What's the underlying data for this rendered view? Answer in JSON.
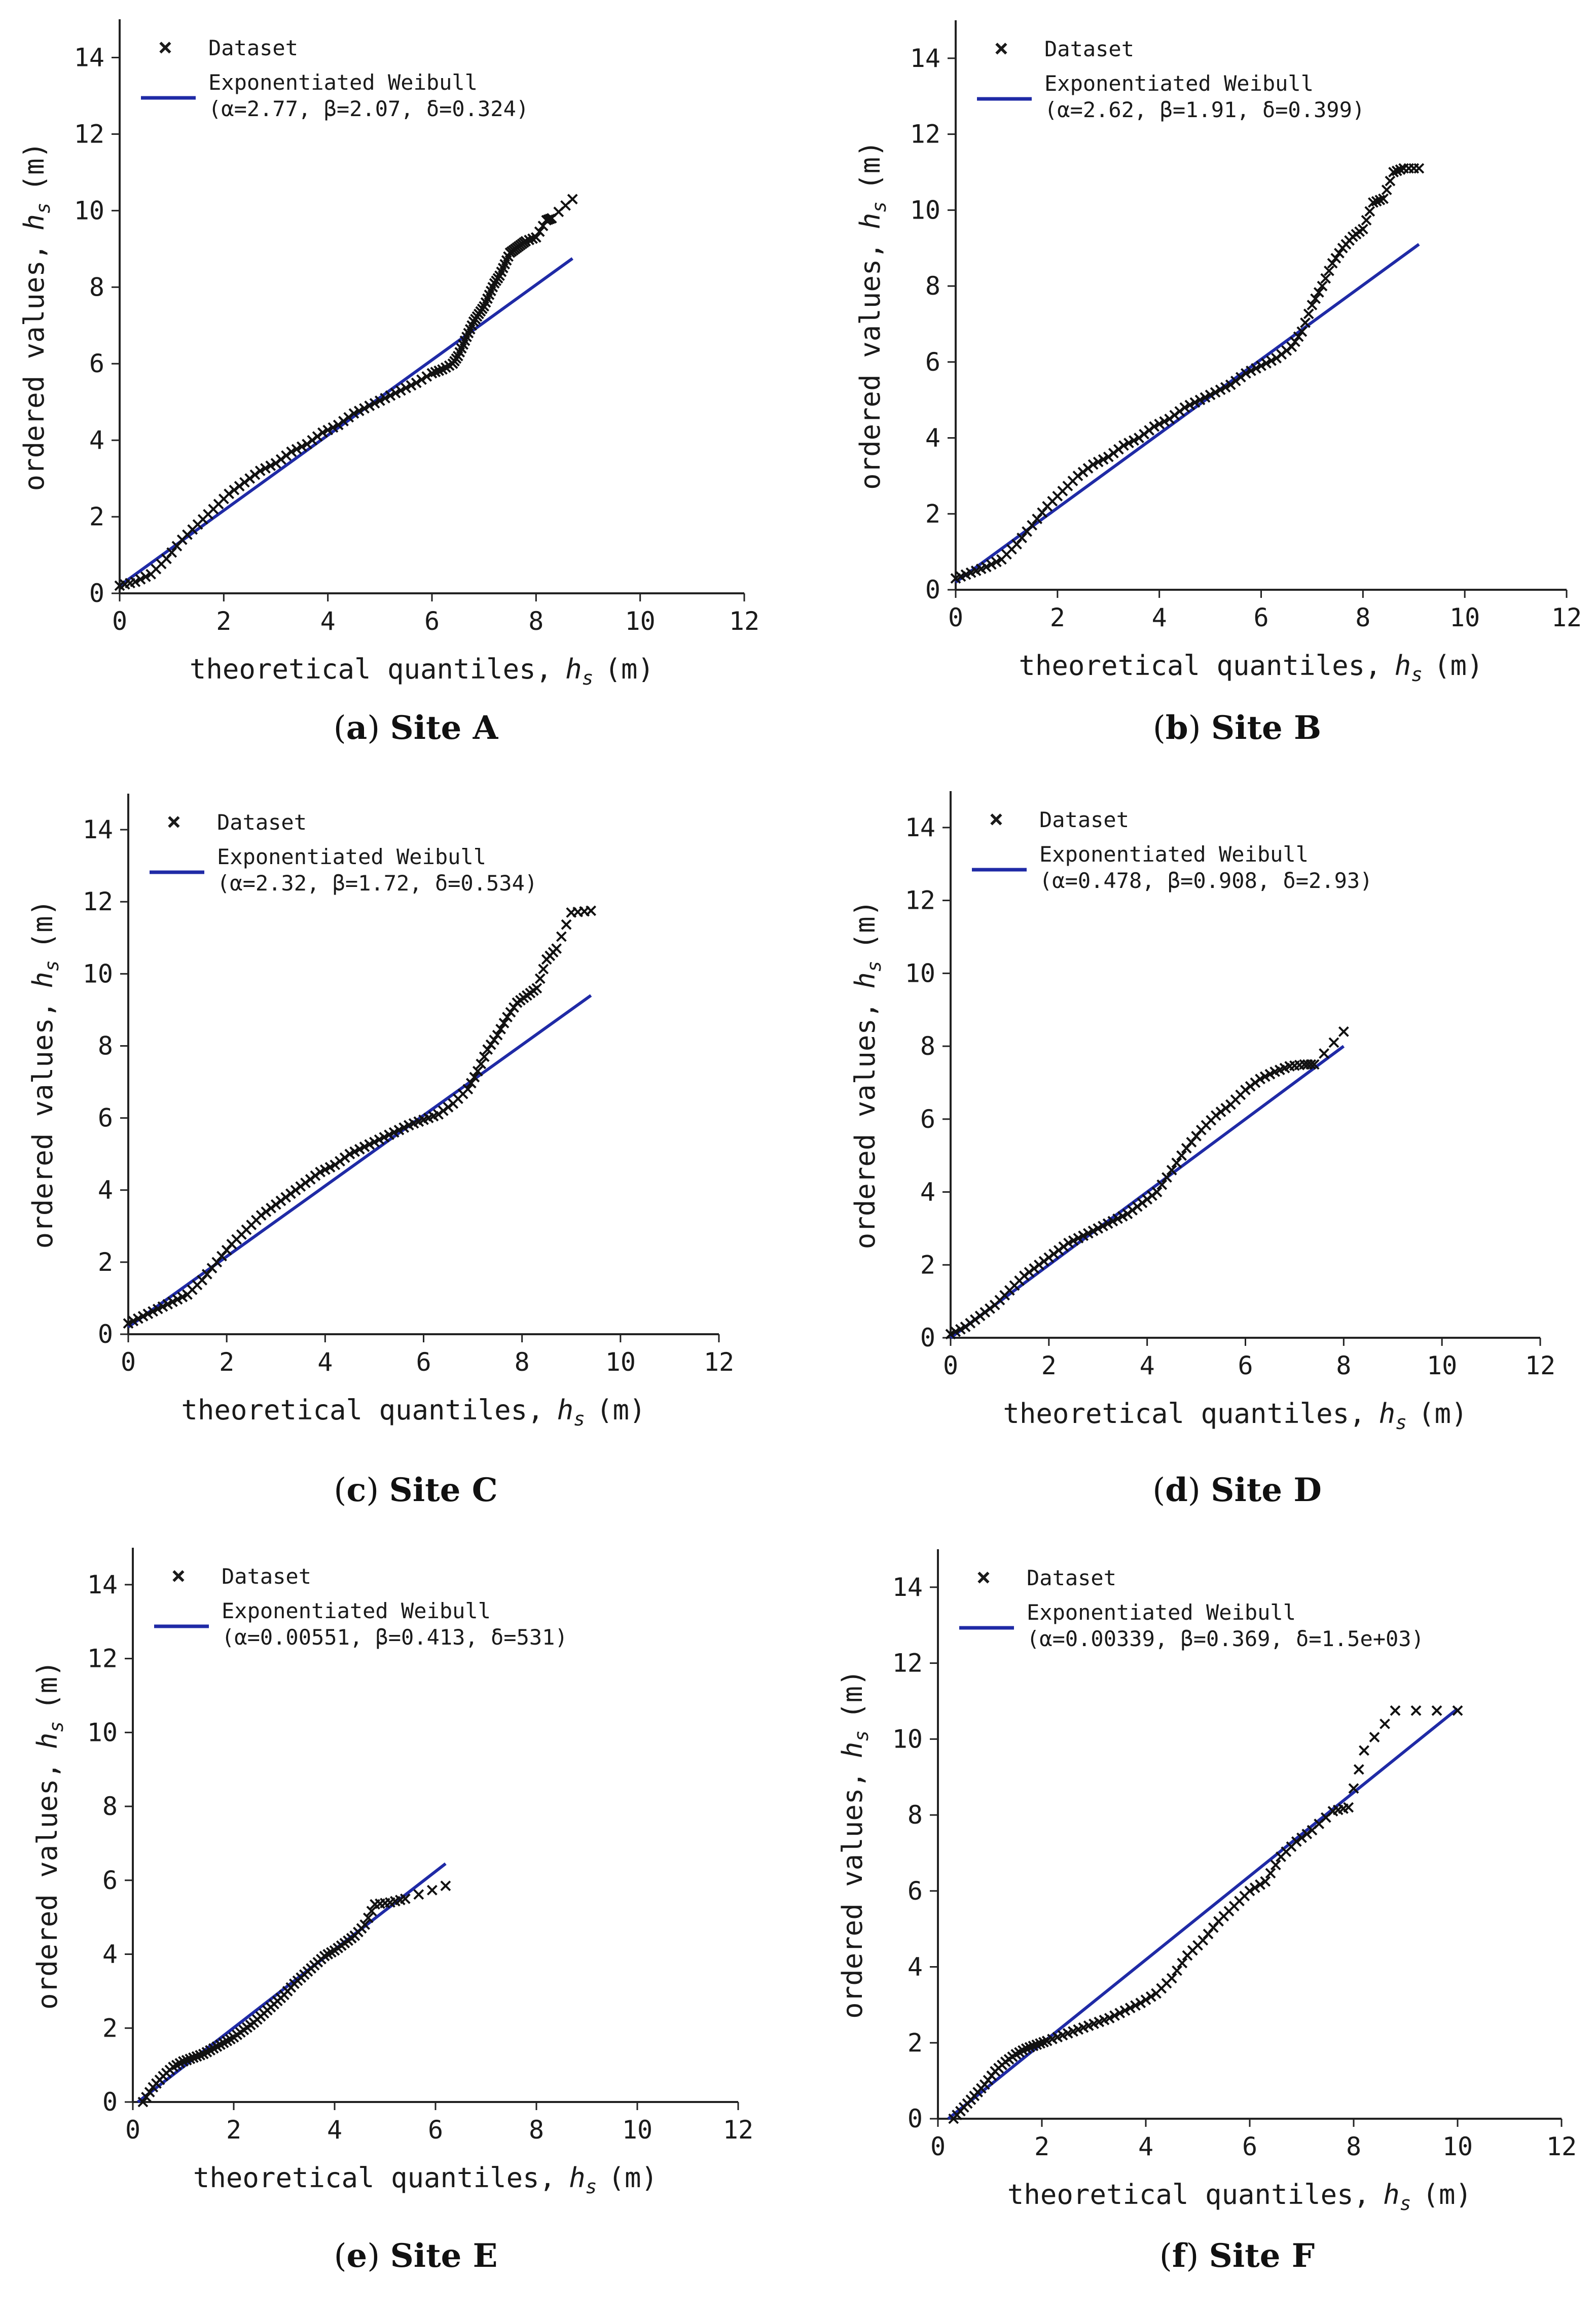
{
  "colors": {
    "fit_line": "#1f2aa6",
    "points": "#111111",
    "axis": "#222222"
  },
  "legend_markers": {
    "dataset_marker": "×"
  },
  "chart_data": [
    {
      "type": "scatter",
      "panel": "a",
      "caption_letter": "a",
      "caption_site": "Site A",
      "xlabel": "theoretical quantiles,",
      "ylabel": "ordered values,",
      "var_label": "h",
      "var_sub": "s",
      "unit": "(m)",
      "xlim": [
        0,
        12
      ],
      "ylim": [
        0,
        15
      ],
      "xticks": [
        "0",
        "2",
        "4",
        "6",
        "8",
        "10",
        "12"
      ],
      "yticks": [
        "0",
        "2",
        "4",
        "6",
        "8",
        "10",
        "12",
        "14"
      ],
      "legend": {
        "dataset_label": "Dataset",
        "fit_label": "Exponentiated Weibull",
        "params": "(α=2.77, β=2.07, δ=0.324)"
      },
      "fit_line": {
        "x": [
          0,
          8.7
        ],
        "y": [
          0.2,
          8.75
        ]
      },
      "points": {
        "x": [
          0,
          0.3,
          0.6,
          0.9,
          1.2,
          1.5,
          1.8,
          2.1,
          2.4,
          2.7,
          3.0,
          3.3,
          3.6,
          3.9,
          4.2,
          4.5,
          4.8,
          5.1,
          5.4,
          5.7,
          6.0,
          6.2,
          6.4,
          6.5,
          6.6,
          6.7,
          6.8,
          6.9,
          7.0,
          7.1,
          7.2,
          7.3,
          7.4,
          7.5,
          7.6,
          7.7,
          7.8,
          8.0,
          8.2,
          8.3,
          8.7
        ],
        "y": [
          0.2,
          0.3,
          0.5,
          0.9,
          1.4,
          1.8,
          2.2,
          2.6,
          2.9,
          3.2,
          3.4,
          3.7,
          3.9,
          4.2,
          4.4,
          4.7,
          4.9,
          5.1,
          5.3,
          5.5,
          5.75,
          5.85,
          6.0,
          6.2,
          6.5,
          6.8,
          7.1,
          7.3,
          7.5,
          7.8,
          8.1,
          8.3,
          8.6,
          8.9,
          9.0,
          9.1,
          9.2,
          9.3,
          9.75,
          9.8,
          10.3
        ]
      }
    },
    {
      "type": "scatter",
      "panel": "b",
      "caption_letter": "b",
      "caption_site": "Site B",
      "xlabel": "theoretical quantiles,",
      "ylabel": "ordered values,",
      "var_label": "h",
      "var_sub": "s",
      "unit": "(m)",
      "xlim": [
        0,
        12
      ],
      "ylim": [
        0,
        15
      ],
      "xticks": [
        "0",
        "2",
        "4",
        "6",
        "8",
        "10",
        "12"
      ],
      "yticks": [
        "0",
        "2",
        "4",
        "6",
        "8",
        "10",
        "12",
        "14"
      ],
      "legend": {
        "dataset_label": "Dataset",
        "fit_label": "Exponentiated Weibull",
        "params": "(α=2.62, β=1.91, δ=0.399)"
      },
      "fit_line": {
        "x": [
          0,
          9.1
        ],
        "y": [
          0.2,
          9.1
        ]
      },
      "points": {
        "x": [
          0,
          0.3,
          0.6,
          0.9,
          1.2,
          1.5,
          1.8,
          2.1,
          2.4,
          2.7,
          3.0,
          3.3,
          3.6,
          3.9,
          4.2,
          4.5,
          4.8,
          5.1,
          5.4,
          5.7,
          6.0,
          6.3,
          6.6,
          6.8,
          7.0,
          7.2,
          7.4,
          7.6,
          7.8,
          8.0,
          8.2,
          8.4,
          8.6,
          8.8,
          9.1
        ],
        "y": [
          0.3,
          0.45,
          0.6,
          0.8,
          1.2,
          1.7,
          2.2,
          2.6,
          3.0,
          3.3,
          3.5,
          3.8,
          4.0,
          4.3,
          4.5,
          4.8,
          5.0,
          5.2,
          5.4,
          5.7,
          5.9,
          6.1,
          6.4,
          6.8,
          7.5,
          8.0,
          8.6,
          9.0,
          9.3,
          9.5,
          10.2,
          10.3,
          11.0,
          11.1,
          11.1
        ]
      }
    },
    {
      "type": "scatter",
      "panel": "c",
      "caption_letter": "c",
      "caption_site": "Site C",
      "xlabel": "theoretical quantiles,",
      "ylabel": "ordered values,",
      "var_label": "h",
      "var_sub": "s",
      "unit": "(m)",
      "xlim": [
        0,
        12
      ],
      "ylim": [
        0,
        15
      ],
      "xticks": [
        "0",
        "2",
        "4",
        "6",
        "8",
        "10",
        "12"
      ],
      "yticks": [
        "0",
        "2",
        "4",
        "6",
        "8",
        "10",
        "12",
        "14"
      ],
      "legend": {
        "dataset_label": "Dataset",
        "fit_label": "Exponentiated Weibull",
        "params": "(α=2.32, β=1.72, δ=0.534)"
      },
      "fit_line": {
        "x": [
          0,
          9.4
        ],
        "y": [
          0.2,
          9.4
        ]
      },
      "points": {
        "x": [
          0,
          0.3,
          0.6,
          0.9,
          1.2,
          1.5,
          1.8,
          2.1,
          2.4,
          2.7,
          3.0,
          3.3,
          3.6,
          3.9,
          4.2,
          4.5,
          4.8,
          5.1,
          5.4,
          5.7,
          6.0,
          6.3,
          6.6,
          6.9,
          7.1,
          7.3,
          7.5,
          7.7,
          7.9,
          8.1,
          8.3,
          8.5,
          8.7,
          9.0,
          9.4
        ],
        "y": [
          0.3,
          0.5,
          0.7,
          0.9,
          1.1,
          1.5,
          2.0,
          2.5,
          2.9,
          3.3,
          3.6,
          3.9,
          4.2,
          4.5,
          4.7,
          5.0,
          5.2,
          5.4,
          5.6,
          5.8,
          5.95,
          6.1,
          6.4,
          6.8,
          7.3,
          7.9,
          8.3,
          8.8,
          9.2,
          9.4,
          9.6,
          10.4,
          10.7,
          11.7,
          11.75
        ]
      }
    },
    {
      "type": "scatter",
      "panel": "d",
      "caption_letter": "d",
      "caption_site": "Site D",
      "xlabel": "theoretical quantiles,",
      "ylabel": "ordered values,",
      "var_label": "h",
      "var_sub": "s",
      "unit": "(m)",
      "xlim": [
        0,
        12
      ],
      "ylim": [
        0,
        15
      ],
      "xticks": [
        "0",
        "2",
        "4",
        "6",
        "8",
        "10",
        "12"
      ],
      "yticks": [
        "0",
        "2",
        "4",
        "6",
        "8",
        "10",
        "12",
        "14"
      ],
      "legend": {
        "dataset_label": "Dataset",
        "fit_label": "Exponentiated Weibull",
        "params": "(α=0.478, β=0.908, δ=2.93)"
      },
      "fit_line": {
        "x": [
          0,
          8.0
        ],
        "y": [
          0.0,
          8.0
        ]
      },
      "points": {
        "x": [
          0,
          0.3,
          0.6,
          0.9,
          1.2,
          1.5,
          1.8,
          2.1,
          2.4,
          2.7,
          3.0,
          3.3,
          3.6,
          3.9,
          4.2,
          4.5,
          4.8,
          5.1,
          5.4,
          5.7,
          6.0,
          6.3,
          6.6,
          6.9,
          7.2,
          7.4,
          8.0
        ],
        "y": [
          0.1,
          0.3,
          0.6,
          0.9,
          1.3,
          1.7,
          2.0,
          2.3,
          2.6,
          2.8,
          3.0,
          3.2,
          3.4,
          3.7,
          4.0,
          4.6,
          5.2,
          5.7,
          6.1,
          6.4,
          6.8,
          7.1,
          7.3,
          7.45,
          7.5,
          7.5,
          8.4
        ]
      }
    },
    {
      "type": "scatter",
      "panel": "e",
      "caption_letter": "e",
      "caption_site": "Site E",
      "xlabel": "theoretical quantiles,",
      "ylabel": "ordered values,",
      "var_label": "h",
      "var_sub": "s",
      "unit": "(m)",
      "xlim": [
        0,
        12
      ],
      "ylim": [
        0,
        15
      ],
      "xticks": [
        "0",
        "2",
        "4",
        "6",
        "8",
        "10",
        "12"
      ],
      "yticks": [
        "0",
        "2",
        "4",
        "6",
        "8",
        "10",
        "12",
        "14"
      ],
      "legend": {
        "dataset_label": "Dataset",
        "fit_label": "Exponentiated Weibull",
        "params": "(α=0.00551, β=0.413, δ=531)"
      },
      "fit_line": {
        "x": [
          0.1,
          6.2
        ],
        "y": [
          0.0,
          6.45
        ]
      },
      "points": {
        "x": [
          0.2,
          0.4,
          0.6,
          0.8,
          1.0,
          1.2,
          1.4,
          1.6,
          1.8,
          2.0,
          2.2,
          2.4,
          2.6,
          2.8,
          3.0,
          3.2,
          3.4,
          3.6,
          3.8,
          4.0,
          4.2,
          4.4,
          4.6,
          4.8,
          5.1,
          5.4,
          6.2
        ],
        "y": [
          0.0,
          0.4,
          0.7,
          0.95,
          1.1,
          1.2,
          1.3,
          1.45,
          1.6,
          1.75,
          1.95,
          2.15,
          2.4,
          2.65,
          2.9,
          3.2,
          3.45,
          3.7,
          3.95,
          4.1,
          4.3,
          4.5,
          4.8,
          5.35,
          5.4,
          5.5,
          5.85
        ]
      }
    },
    {
      "type": "scatter",
      "panel": "f",
      "caption_letter": "f",
      "caption_site": "Site F",
      "xlabel": "theoretical quantiles,",
      "ylabel": "ordered values,",
      "var_label": "h",
      "var_sub": "s",
      "unit": "(m)",
      "xlim": [
        0,
        12
      ],
      "ylim": [
        0,
        15
      ],
      "xticks": [
        "0",
        "2",
        "4",
        "6",
        "8",
        "10",
        "12"
      ],
      "yticks": [
        "0",
        "2",
        "4",
        "6",
        "8",
        "10",
        "12",
        "14"
      ],
      "legend": {
        "dataset_label": "Dataset",
        "fit_label": "Exponentiated Weibull",
        "params": "(α=0.00339, β=0.369, δ=1.5e+03)"
      },
      "fit_line": {
        "x": [
          0.2,
          10.0
        ],
        "y": [
          0.0,
          10.8
        ]
      },
      "points": {
        "x": [
          0.3,
          0.5,
          0.7,
          0.9,
          1.1,
          1.3,
          1.5,
          1.7,
          1.9,
          2.1,
          2.4,
          2.7,
          3.0,
          3.3,
          3.6,
          3.9,
          4.2,
          4.5,
          4.8,
          5.1,
          5.4,
          5.7,
          6.0,
          6.3,
          6.6,
          6.9,
          7.2,
          7.6,
          7.9,
          8.2,
          8.8,
          10.0
        ],
        "y": [
          0.0,
          0.3,
          0.6,
          0.9,
          1.25,
          1.5,
          1.7,
          1.85,
          1.95,
          2.05,
          2.2,
          2.35,
          2.5,
          2.65,
          2.85,
          3.05,
          3.3,
          3.7,
          4.3,
          4.7,
          5.2,
          5.6,
          6.0,
          6.25,
          6.9,
          7.3,
          7.6,
          8.1,
          8.2,
          9.7,
          10.75,
          10.75
        ]
      }
    }
  ]
}
